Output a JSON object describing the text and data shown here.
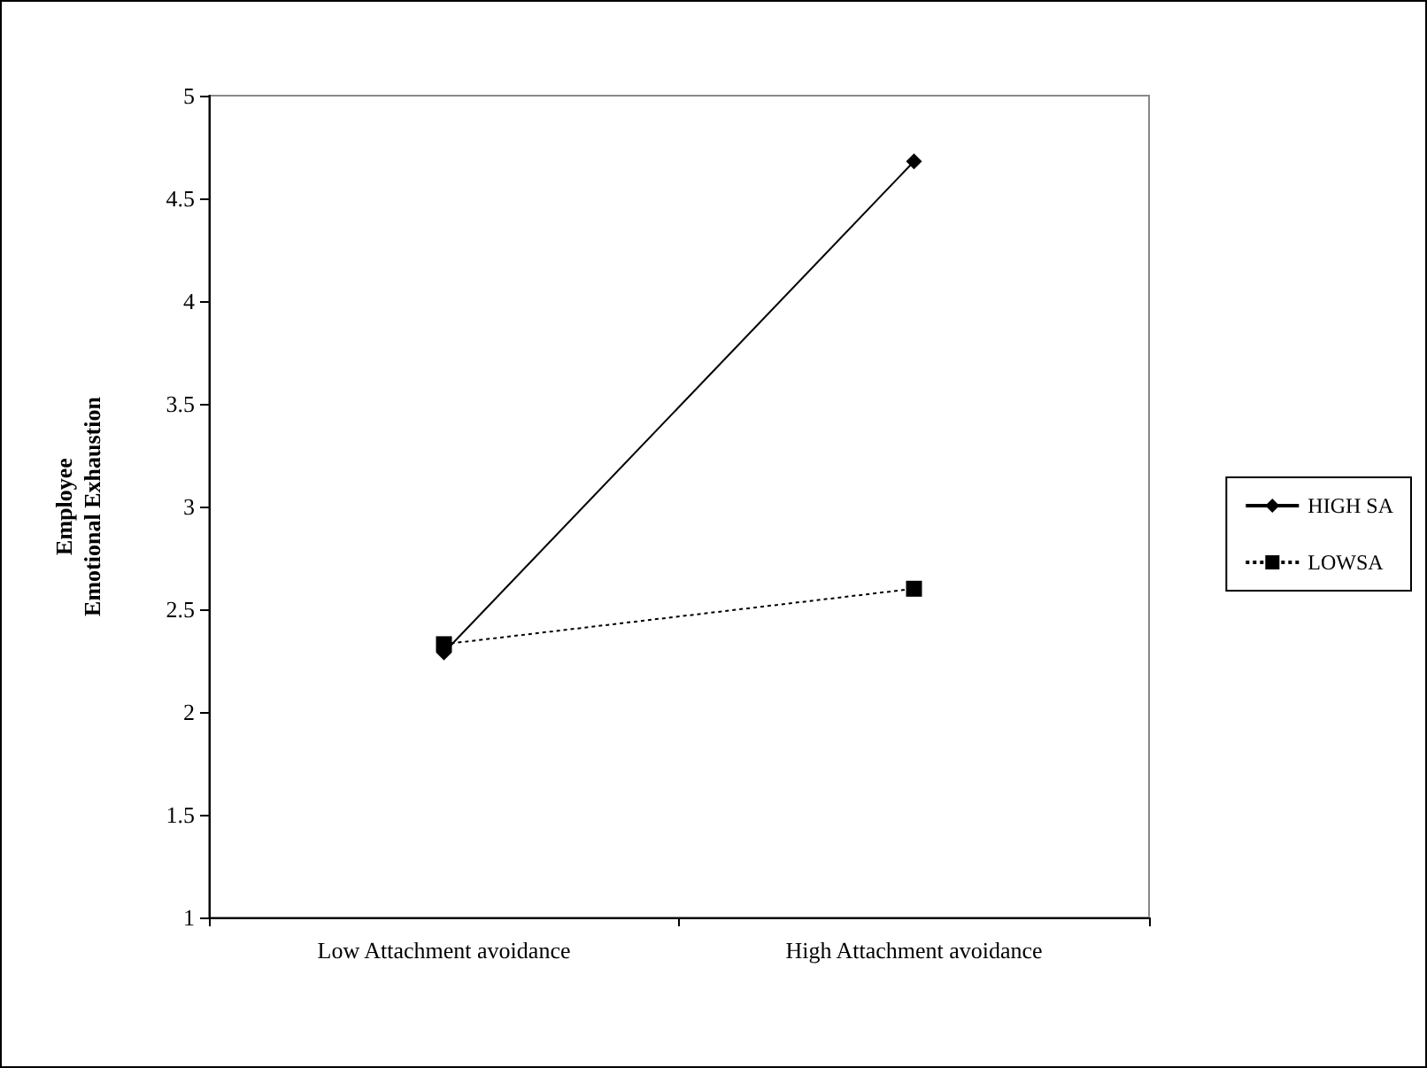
{
  "chart_data": {
    "type": "line",
    "ylabel": "Employee\nEmotional Exhaustion",
    "categories": [
      "Low Attachment avoidance",
      "High Attachment avoidance"
    ],
    "series": [
      {
        "name": "HIGH SA",
        "color": "#000000",
        "values": [
          2.29,
          4.68
        ],
        "marker": "diamond",
        "line_style": "solid"
      },
      {
        "name": "LOWSA",
        "color": "#000000",
        "values": [
          2.33,
          2.6
        ],
        "marker": "square",
        "line_style": "dotted"
      }
    ],
    "ylim": [
      1,
      5
    ],
    "yticks": [
      1,
      1.5,
      2,
      2.5,
      3,
      3.5,
      4,
      4.5,
      5
    ],
    "grid": false,
    "legend": "right"
  }
}
